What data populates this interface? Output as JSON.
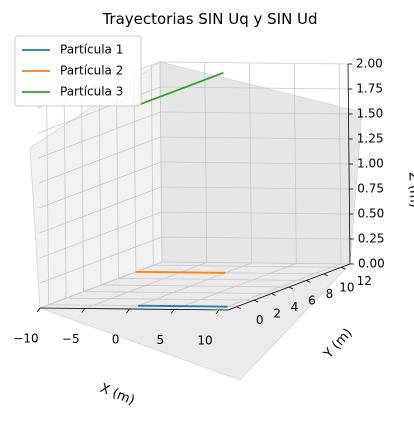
{
  "chart_data": {
    "type": "line",
    "projection": "3d",
    "title": "Trayectorias SIN Uq y SIN Ud",
    "xlabel": "X (m)",
    "ylabel": "Y (m)",
    "zlabel": "Z (m)",
    "xlim": [
      -10,
      11
    ],
    "ylim": [
      -1,
      13
    ],
    "zlim": [
      0,
      2
    ],
    "x_ticks": [
      -10,
      -5,
      0,
      5,
      10
    ],
    "x_tick_labels": [
      "−10",
      "−5",
      "0",
      "5",
      "10"
    ],
    "y_ticks": [
      0,
      2,
      4,
      6,
      8,
      10,
      12
    ],
    "y_tick_labels": [
      "0",
      "2",
      "4",
      "6",
      "8",
      "10",
      "12"
    ],
    "z_ticks": [
      0,
      0.25,
      0.5,
      0.75,
      1.0,
      1.25,
      1.5,
      1.75,
      2.0
    ],
    "z_tick_labels": [
      "0.00",
      "0.25",
      "0.50",
      "0.75",
      "1.00",
      "1.25",
      "1.50",
      "1.75",
      "2.00"
    ],
    "grid": true,
    "legend_position": "top-left",
    "series": [
      {
        "name": "Partícula 1",
        "color": "#1f77b4",
        "x": [
          0,
          10
        ],
        "y": [
          0,
          0
        ],
        "z": [
          0,
          0
        ]
      },
      {
        "name": "Partícula 2",
        "color": "#ff7f0e",
        "x": [
          -10,
          0
        ],
        "y": [
          10,
          10
        ],
        "z": [
          0,
          0
        ]
      },
      {
        "name": "Partícula 3",
        "color": "#2ca02c",
        "x": [
          0,
          0
        ],
        "y": [
          0,
          10
        ],
        "z": [
          2,
          2
        ]
      }
    ]
  }
}
